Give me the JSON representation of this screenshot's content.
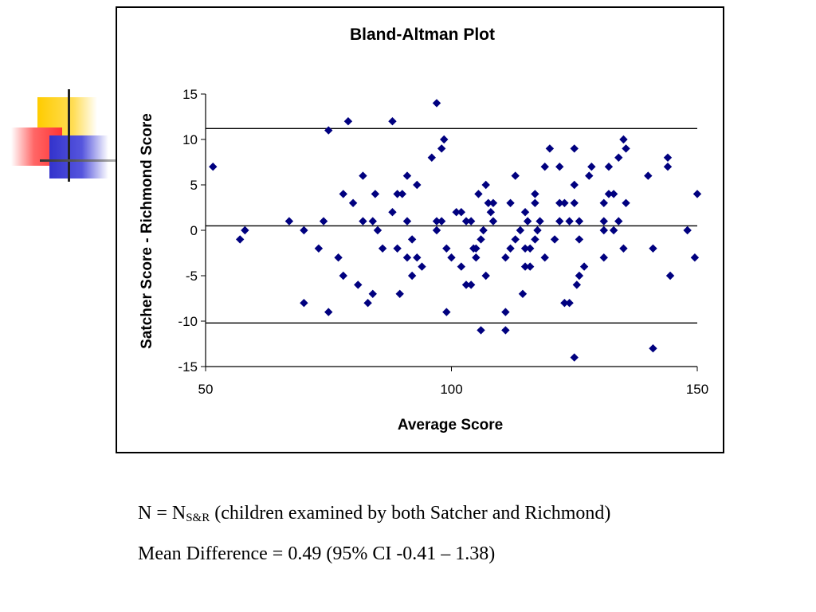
{
  "colors": {
    "marker": "#00007f",
    "deco_yellow": "#ffcc00",
    "deco_red": "#ff3333",
    "deco_blue": "#3333cc"
  },
  "chart_data": {
    "type": "scatter",
    "title": "Bland-Altman Plot",
    "xlabel": "Average Score",
    "ylabel": "Satcher Score - Richmond Score",
    "xlim": [
      50,
      150
    ],
    "ylim": [
      -15,
      15
    ],
    "xticks": [
      50,
      100,
      150
    ],
    "yticks": [
      -15,
      -10,
      -5,
      0,
      5,
      10,
      15
    ],
    "grid": false,
    "marker": "diamond",
    "reference_lines": [
      11.2,
      0.49,
      -10.2
    ],
    "points": [
      [
        51.5,
        7
      ],
      [
        57,
        -1
      ],
      [
        58,
        0
      ],
      [
        67,
        1
      ],
      [
        70,
        -8
      ],
      [
        70,
        0
      ],
      [
        73,
        -2
      ],
      [
        74,
        1
      ],
      [
        75,
        11
      ],
      [
        75,
        -9
      ],
      [
        77,
        -3
      ],
      [
        78,
        4
      ],
      [
        78,
        -5
      ],
      [
        79,
        12
      ],
      [
        80,
        3
      ],
      [
        81,
        -6
      ],
      [
        82,
        1
      ],
      [
        82,
        6
      ],
      [
        83,
        -8
      ],
      [
        84,
        1
      ],
      [
        84,
        -7
      ],
      [
        84.5,
        4
      ],
      [
        85,
        0
      ],
      [
        86,
        -2
      ],
      [
        88,
        2
      ],
      [
        88,
        12
      ],
      [
        89,
        4
      ],
      [
        89,
        -2
      ],
      [
        89.5,
        -7
      ],
      [
        90,
        4
      ],
      [
        91,
        1
      ],
      [
        91,
        -3
      ],
      [
        91,
        6
      ],
      [
        92,
        -1
      ],
      [
        92,
        -5
      ],
      [
        93,
        5
      ],
      [
        93,
        -3
      ],
      [
        94,
        -4
      ],
      [
        96,
        8
      ],
      [
        97,
        1
      ],
      [
        97,
        0
      ],
      [
        97,
        14
      ],
      [
        98,
        9
      ],
      [
        98,
        1
      ],
      [
        98.5,
        10
      ],
      [
        99,
        -2
      ],
      [
        99,
        -9
      ],
      [
        100,
        -3
      ],
      [
        101,
        2
      ],
      [
        102,
        -4
      ],
      [
        102,
        2
      ],
      [
        103,
        1
      ],
      [
        103,
        -6
      ],
      [
        104,
        1
      ],
      [
        104,
        -6
      ],
      [
        104.5,
        -2
      ],
      [
        105,
        -3
      ],
      [
        105,
        -2
      ],
      [
        105.5,
        4
      ],
      [
        106,
        -1
      ],
      [
        106,
        -11
      ],
      [
        106.5,
        0
      ],
      [
        107,
        5
      ],
      [
        107,
        -5
      ],
      [
        107.5,
        3
      ],
      [
        108,
        2
      ],
      [
        108.5,
        3
      ],
      [
        108.5,
        1
      ],
      [
        111,
        -11
      ],
      [
        111,
        -9
      ],
      [
        111,
        -3
      ],
      [
        112,
        -2
      ],
      [
        112,
        3
      ],
      [
        113,
        6
      ],
      [
        113,
        -1
      ],
      [
        114,
        0
      ],
      [
        114.5,
        -7
      ],
      [
        115,
        -2
      ],
      [
        115,
        -4
      ],
      [
        115,
        2
      ],
      [
        115.5,
        1
      ],
      [
        116,
        -2
      ],
      [
        116,
        -4
      ],
      [
        117,
        4
      ],
      [
        117,
        3
      ],
      [
        117,
        -1
      ],
      [
        117.5,
        0
      ],
      [
        118,
        1
      ],
      [
        119,
        -3
      ],
      [
        119,
        7
      ],
      [
        120,
        9
      ],
      [
        121,
        -1
      ],
      [
        122,
        7
      ],
      [
        122,
        3
      ],
      [
        122,
        1
      ],
      [
        123,
        -8
      ],
      [
        123,
        3
      ],
      [
        124,
        -8
      ],
      [
        124,
        1
      ],
      [
        125,
        3
      ],
      [
        125,
        9
      ],
      [
        125,
        5
      ],
      [
        125,
        -14
      ],
      [
        125.5,
        -6
      ],
      [
        126,
        -5
      ],
      [
        126,
        -1
      ],
      [
        126,
        1
      ],
      [
        127,
        -4
      ],
      [
        128,
        6
      ],
      [
        128.5,
        7
      ],
      [
        131,
        0
      ],
      [
        131,
        1
      ],
      [
        131,
        3
      ],
      [
        131,
        -3
      ],
      [
        132,
        4
      ],
      [
        132,
        7
      ],
      [
        133,
        4
      ],
      [
        133,
        0
      ],
      [
        134,
        1
      ],
      [
        134,
        8
      ],
      [
        135,
        10
      ],
      [
        135,
        -2
      ],
      [
        135.5,
        9
      ],
      [
        135.5,
        3
      ],
      [
        140,
        6
      ],
      [
        141,
        -2
      ],
      [
        141,
        -13
      ],
      [
        144,
        7
      ],
      [
        144,
        8
      ],
      [
        144.5,
        -5
      ],
      [
        148,
        0
      ],
      [
        149.5,
        -3
      ],
      [
        150,
        4
      ]
    ]
  },
  "caption": {
    "line1_prefix": "N = N",
    "line1_sub": "S&R",
    "line1_suffix": " (children examined by both Satcher and Richmond)",
    "line2": "Mean Difference = 0.49 (95% CI -0.41 – 1.38)"
  }
}
